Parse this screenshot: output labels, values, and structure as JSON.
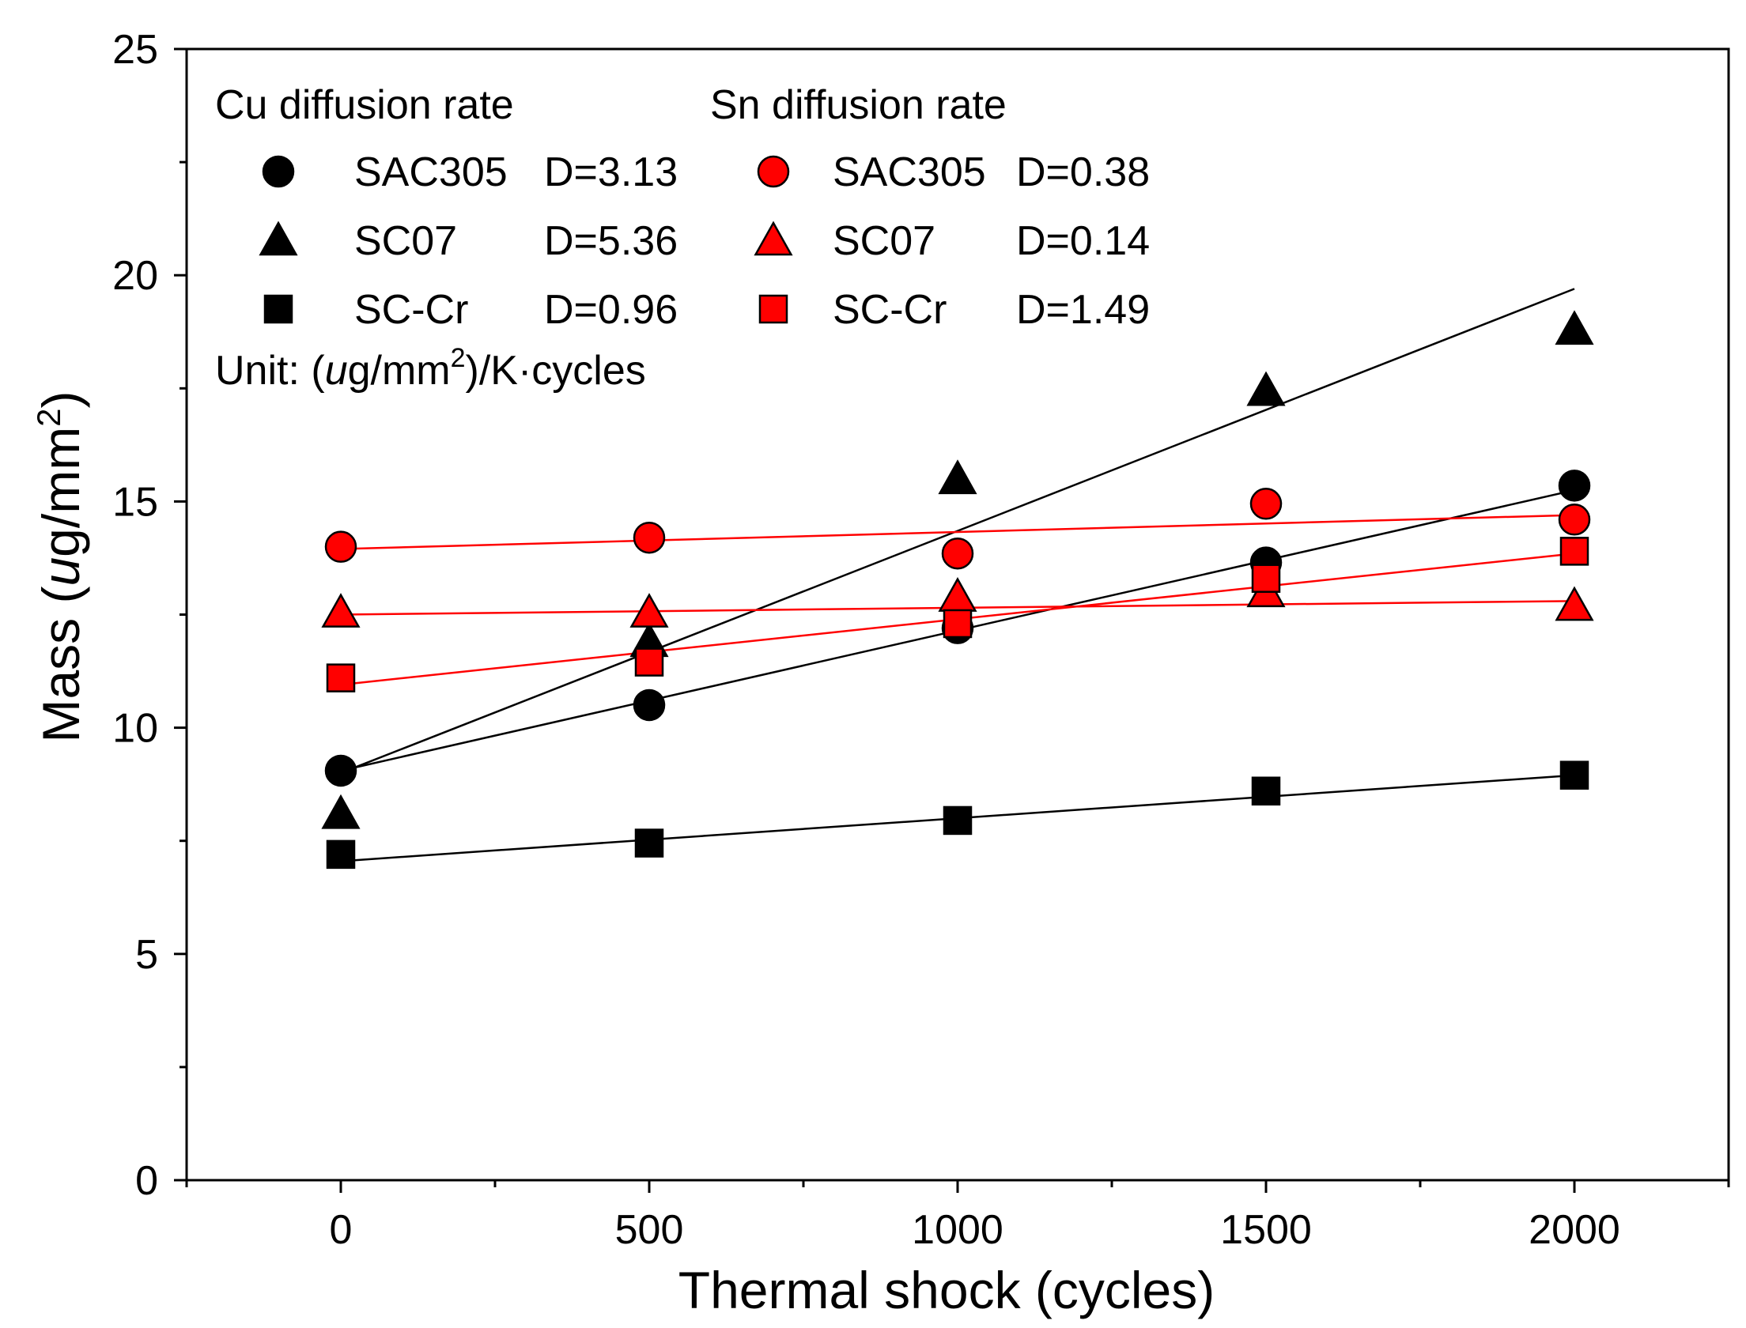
{
  "chart_data": {
    "type": "scatter",
    "title": "",
    "xlabel": "Thermal shock (cycles)",
    "ylabel_prefix": "Mass (",
    "ylabel_italic": "u",
    "ylabel_mid": "g/mm",
    "ylabel_sup": "2",
    "ylabel_suffix": ")",
    "xlim": [
      -250,
      2250
    ],
    "ylim": [
      0,
      25
    ],
    "x_ticks": [
      0,
      500,
      1000,
      1500,
      2000
    ],
    "x_tick_labels": [
      "0",
      "500",
      "1000",
      "1500",
      "2000"
    ],
    "x_minor_ticks": [
      -250,
      250,
      750,
      1250,
      1750,
      2250
    ],
    "y_ticks": [
      0,
      5,
      10,
      15,
      20,
      25
    ],
    "y_tick_labels": [
      "0",
      "5",
      "10",
      "15",
      "20",
      "25"
    ],
    "y_minor_ticks": [
      2.5,
      7.5,
      12.5,
      17.5,
      22.5
    ],
    "grid": false,
    "legend": {
      "position": "top-left",
      "cu_header": "Cu diffusion rate",
      "sn_header": "Sn diffusion rate",
      "unit_prefix": "Unit: (",
      "unit_italic": "u",
      "unit_mid": "g/mm",
      "unit_sup": "2",
      "unit_suffix": ")/K·cycles"
    },
    "series": [
      {
        "name": "SAC305",
        "group": "Cu",
        "d_label": "D=3.13",
        "marker": "circle",
        "color": "#000000",
        "x": [
          0,
          500,
          1000,
          1500,
          2000
        ],
        "values": [
          9.05,
          10.5,
          12.2,
          13.65,
          15.35
        ],
        "fit": [
          [
            0,
            9.05
          ],
          [
            2000,
            15.25
          ]
        ]
      },
      {
        "name": "SC07",
        "group": "Cu",
        "d_label": "D=5.36",
        "marker": "triangle",
        "color": "#000000",
        "x": [
          0,
          500,
          1000,
          1500,
          2000
        ],
        "values": [
          8.1,
          11.9,
          15.5,
          17.45,
          18.8
        ],
        "fit": [
          [
            0,
            9.0
          ],
          [
            2000,
            19.7
          ]
        ]
      },
      {
        "name": "SC-Cr",
        "group": "Cu",
        "d_label": "D=0.96",
        "marker": "square",
        "color": "#000000",
        "x": [
          0,
          500,
          1000,
          1500,
          2000
        ],
        "values": [
          7.2,
          7.45,
          7.95,
          8.6,
          8.95
        ],
        "fit": [
          [
            0,
            7.05
          ],
          [
            2000,
            8.95
          ]
        ]
      },
      {
        "name": "SAC305",
        "group": "Sn",
        "d_label": "D=0.38",
        "marker": "circle",
        "color": "#ff0000",
        "x": [
          0,
          500,
          1000,
          1500,
          2000
        ],
        "values": [
          14.0,
          14.2,
          13.85,
          14.95,
          14.6
        ],
        "fit": [
          [
            0,
            13.95
          ],
          [
            2000,
            14.7
          ]
        ]
      },
      {
        "name": "SC07",
        "group": "Sn",
        "d_label": "D=0.14",
        "marker": "triangle",
        "color": "#ff0000",
        "x": [
          0,
          500,
          1000,
          1500,
          2000
        ],
        "values": [
          12.55,
          12.55,
          12.9,
          13.0,
          12.7
        ],
        "fit": [
          [
            0,
            12.5
          ],
          [
            2000,
            12.8
          ]
        ]
      },
      {
        "name": "SC-Cr",
        "group": "Sn",
        "d_label": "D=1.49",
        "marker": "square",
        "color": "#ff0000",
        "x": [
          0,
          500,
          1000,
          1500,
          2000
        ],
        "values": [
          11.1,
          11.45,
          12.3,
          13.3,
          13.9
        ],
        "fit": [
          [
            0,
            10.95
          ],
          [
            2000,
            13.85
          ]
        ]
      }
    ]
  }
}
